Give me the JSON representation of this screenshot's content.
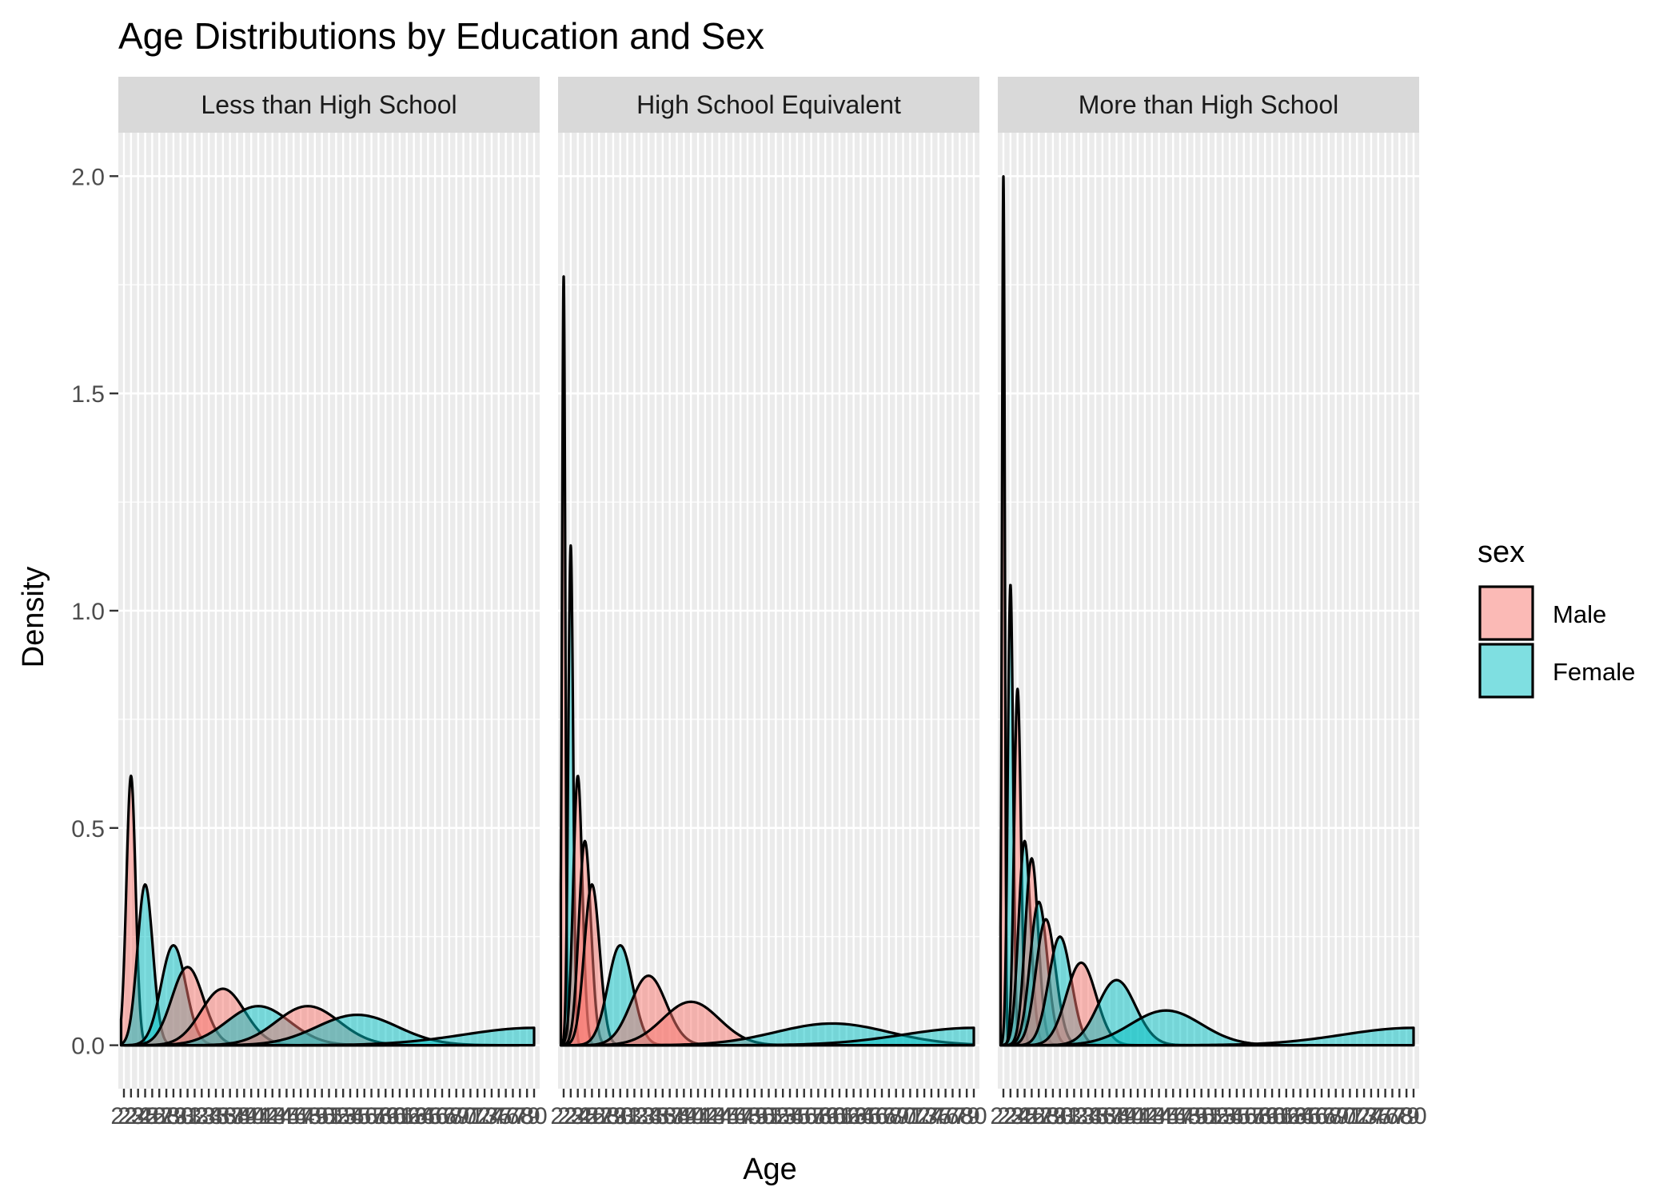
{
  "chart_data": {
    "type": "area",
    "title": "Age Distributions by Education and Sex",
    "xlabel": "Age",
    "ylabel": "Density",
    "ylim": [
      -0.1,
      2.1
    ],
    "y_ticks": [
      0.0,
      0.5,
      1.0,
      1.5,
      2.0
    ],
    "y_tick_labels": [
      "0.0",
      "0.5",
      "1.0",
      "1.5",
      "2.0"
    ],
    "x_categories": [
      22,
      23,
      24,
      25,
      26,
      27,
      28,
      29,
      30,
      31,
      32,
      33,
      34,
      35,
      36,
      37,
      38,
      39,
      40,
      41,
      42,
      43,
      44,
      45,
      46,
      47,
      48,
      49,
      50,
      51,
      52,
      53,
      54,
      55,
      56,
      57,
      58,
      59,
      60,
      61,
      62,
      63,
      64,
      65,
      66,
      67,
      68,
      69,
      70,
      71,
      72,
      73,
      74,
      75,
      76,
      77,
      78,
      79,
      80
    ],
    "grid": true,
    "facets": [
      "Less than High School",
      "High School Equivalent",
      "More than High School"
    ],
    "legend": {
      "title": "sex",
      "position": "right",
      "entries": [
        {
          "label": "Male",
          "color": "#F8766D"
        },
        {
          "label": "Female",
          "color": "#00BFC4"
        }
      ]
    },
    "panel_peaks": [
      {
        "facet": "Less than High School",
        "peaks": [
          {
            "sex": "Male",
            "x": 23,
            "density": 0.62
          },
          {
            "sex": "Female",
            "x": 25,
            "density": 0.37
          },
          {
            "sex": "Female",
            "x": 29,
            "density": 0.23
          },
          {
            "sex": "Male",
            "x": 31,
            "density": 0.18
          },
          {
            "sex": "Male",
            "x": 36,
            "density": 0.13
          },
          {
            "sex": "Female",
            "x": 41,
            "density": 0.09
          },
          {
            "sex": "Male",
            "x": 48,
            "density": 0.09
          },
          {
            "sex": "Female",
            "x": 55,
            "density": 0.07
          },
          {
            "sex": "Female",
            "x": 80,
            "density": 0.04
          }
        ]
      },
      {
        "facet": "High School Equivalent",
        "peaks": [
          {
            "sex": "Male",
            "x": 22,
            "density": 1.77
          },
          {
            "sex": "Female",
            "x": 23,
            "density": 1.15
          },
          {
            "sex": "Male",
            "x": 24,
            "density": 0.62
          },
          {
            "sex": "Male",
            "x": 25,
            "density": 0.47
          },
          {
            "sex": "Male",
            "x": 26,
            "density": 0.37
          },
          {
            "sex": "Female",
            "x": 30,
            "density": 0.23
          },
          {
            "sex": "Male",
            "x": 34,
            "density": 0.16
          },
          {
            "sex": "Male",
            "x": 40,
            "density": 0.1
          },
          {
            "sex": "Female",
            "x": 60,
            "density": 0.05
          },
          {
            "sex": "Female",
            "x": 80,
            "density": 0.04
          }
        ]
      },
      {
        "facet": "More than High School",
        "peaks": [
          {
            "sex": "Male",
            "x": 22,
            "density": 2.0
          },
          {
            "sex": "Female",
            "x": 23,
            "density": 1.06
          },
          {
            "sex": "Male",
            "x": 24,
            "density": 0.82
          },
          {
            "sex": "Female",
            "x": 25,
            "density": 0.47
          },
          {
            "sex": "Male",
            "x": 26,
            "density": 0.43
          },
          {
            "sex": "Female",
            "x": 27,
            "density": 0.33
          },
          {
            "sex": "Male",
            "x": 28,
            "density": 0.29
          },
          {
            "sex": "Female",
            "x": 30,
            "density": 0.25
          },
          {
            "sex": "Male",
            "x": 33,
            "density": 0.19
          },
          {
            "sex": "Female",
            "x": 38,
            "density": 0.15
          },
          {
            "sex": "Female",
            "x": 45,
            "density": 0.08
          },
          {
            "sex": "Female",
            "x": 80,
            "density": 0.04
          }
        ]
      }
    ]
  }
}
